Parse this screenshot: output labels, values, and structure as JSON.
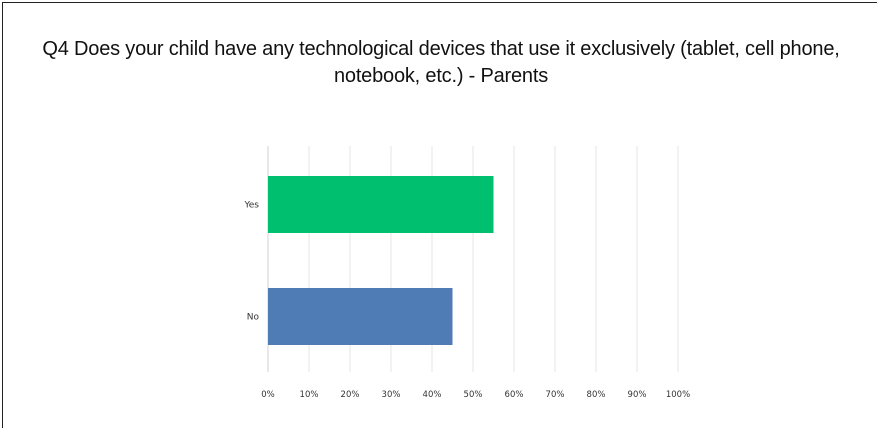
{
  "chart_data": {
    "type": "bar",
    "orientation": "horizontal",
    "title": "Q4 Does your child have any technological devices that use it exclusively (tablet, cell phone, notebook, etc.) - Parents",
    "categories": [
      "Yes",
      "No"
    ],
    "values": [
      55,
      45
    ],
    "colors": [
      "#00bf6f",
      "#507cb6"
    ],
    "xlim": [
      0,
      100
    ],
    "xticks": [
      0,
      10,
      20,
      30,
      40,
      50,
      60,
      70,
      80,
      90,
      100
    ],
    "xtick_labels": [
      "0%",
      "10%",
      "20%",
      "30%",
      "40%",
      "50%",
      "60%",
      "70%",
      "80%",
      "90%",
      "100%"
    ],
    "grid": true,
    "legend": "none"
  }
}
